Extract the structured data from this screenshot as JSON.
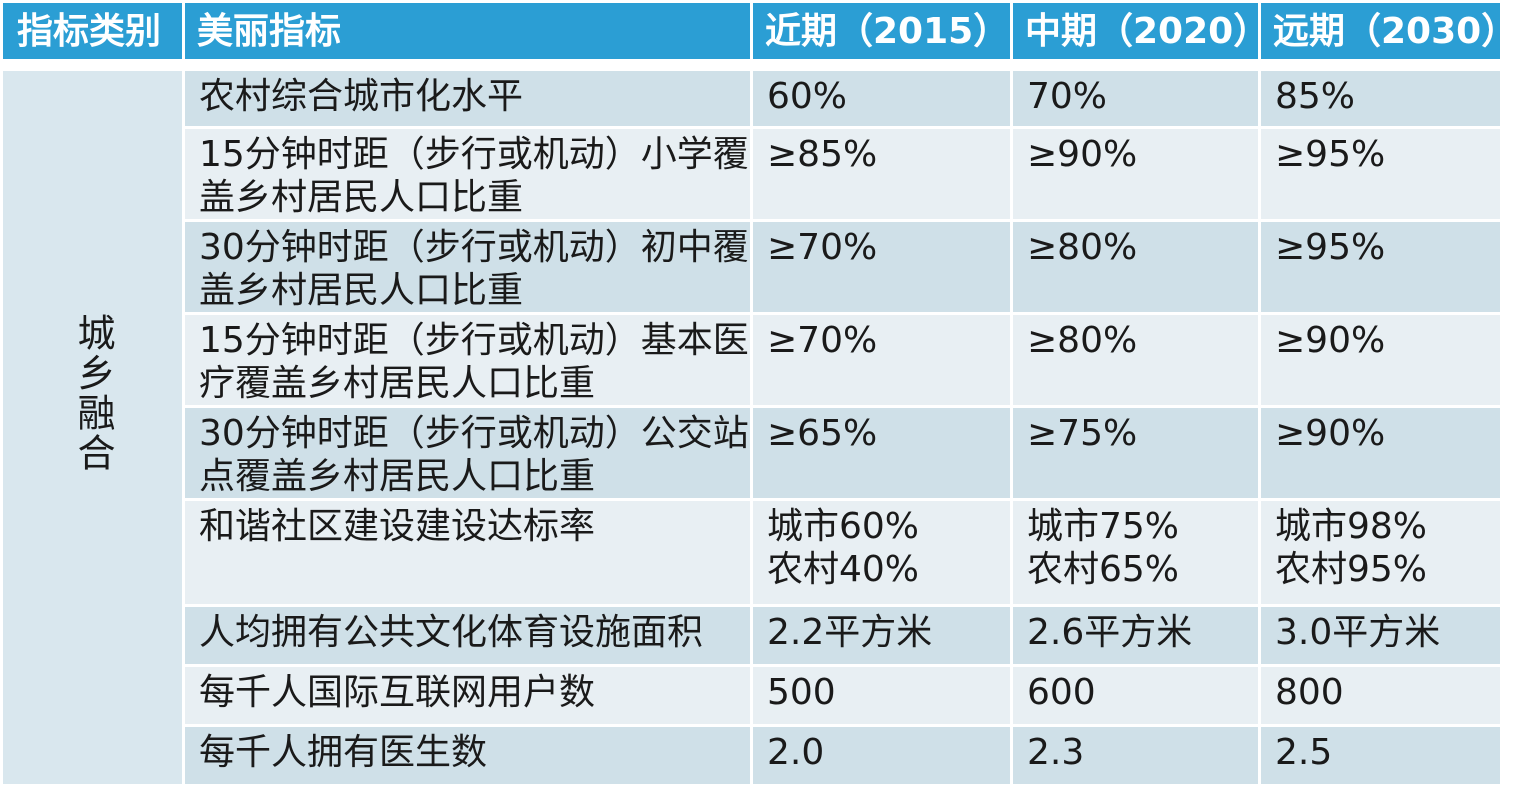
{
  "header": {
    "category": "指标类别",
    "indicator": "美丽指标",
    "near": "近期（2015）",
    "mid": "中期（2020）",
    "far": "远期（2030）"
  },
  "category_label": "城乡融合",
  "rows": [
    {
      "indicator": "农村综合城市化水平",
      "near": [
        "60%"
      ],
      "mid": [
        "70%"
      ],
      "far": [
        "85%"
      ]
    },
    {
      "indicator": "15分钟时距（步行或机动）小学覆盖乡村居民人口比重",
      "near": [
        "≥85%"
      ],
      "mid": [
        "≥90%"
      ],
      "far": [
        "≥95%"
      ]
    },
    {
      "indicator": "30分钟时距（步行或机动）初中覆盖乡村居民人口比重",
      "near": [
        "≥70%"
      ],
      "mid": [
        "≥80%"
      ],
      "far": [
        "≥95%"
      ]
    },
    {
      "indicator": "15分钟时距（步行或机动）基本医疗覆盖乡村居民人口比重",
      "near": [
        "≥70%"
      ],
      "mid": [
        "≥80%"
      ],
      "far": [
        "≥90%"
      ]
    },
    {
      "indicator": "30分钟时距（步行或机动）公交站点覆盖乡村居民人口比重",
      "near": [
        "≥65%"
      ],
      "mid": [
        "≥75%"
      ],
      "far": [
        "≥90%"
      ]
    },
    {
      "indicator": "和谐社区建设建设达标率",
      "near": [
        "城市60%",
        "农村40%"
      ],
      "mid": [
        "城市75%",
        "农村65%"
      ],
      "far": [
        "城市98%",
        "农村95%"
      ]
    },
    {
      "indicator": "人均拥有公共文化体育设施面积",
      "near": [
        "2.2平方米"
      ],
      "mid": [
        "2.6平方米"
      ],
      "far": [
        "3.0平方米"
      ]
    },
    {
      "indicator": "每千人国际互联网用户数",
      "near": [
        "500"
      ],
      "mid": [
        "600"
      ],
      "far": [
        "800"
      ]
    },
    {
      "indicator": "每千人拥有医生数",
      "near": [
        "2.0"
      ],
      "mid": [
        "2.3"
      ],
      "far": [
        "2.5"
      ]
    }
  ]
}
